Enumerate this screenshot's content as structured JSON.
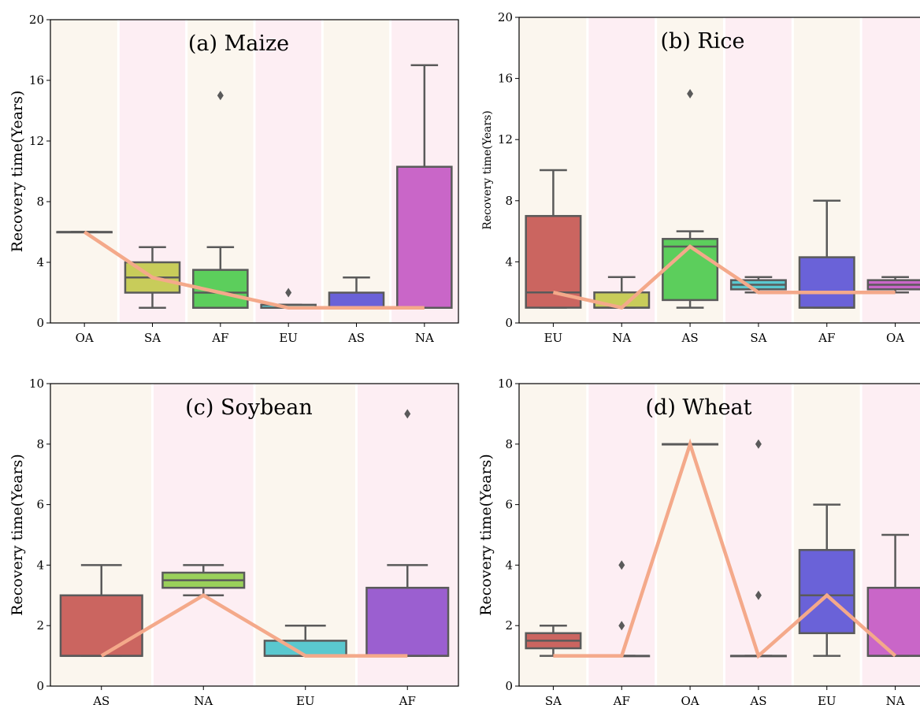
{
  "chart_data": [
    {
      "type": "box",
      "title": "(a) Maize",
      "ylabel": "Recovery time(Years)",
      "ylim": [
        0,
        20
      ],
      "yticks": [
        "0",
        "4",
        "8",
        "12",
        "16",
        "20"
      ],
      "categories": [
        "OA",
        "SA",
        "AF",
        "EU",
        "AS",
        "NA"
      ],
      "boxes": [
        {
          "q1": 6,
          "median": 6,
          "q3": 6,
          "whisker_low": 6,
          "whisker_high": 6,
          "outliers": [],
          "color": "#f0c05a"
        },
        {
          "q1": 2,
          "median": 3,
          "q3": 4,
          "whisker_low": 1,
          "whisker_high": 5,
          "outliers": [],
          "color": "#c8cc5a"
        },
        {
          "q1": 1,
          "median": 2,
          "q3": 3.5,
          "whisker_low": 1,
          "whisker_high": 5,
          "outliers": [
            15
          ],
          "color": "#5cce5c"
        },
        {
          "q1": 1,
          "median": 1,
          "q3": 1.2,
          "whisker_low": 1,
          "whisker_high": 1.2,
          "outliers": [
            2
          ],
          "color": "#5ac8cf"
        },
        {
          "q1": 1,
          "median": 1,
          "q3": 2,
          "whisker_low": 1,
          "whisker_high": 3,
          "outliers": [],
          "color": "#6a62d8"
        },
        {
          "q1": 1,
          "median": 1,
          "q3": 10.3,
          "whisker_low": 1,
          "whisker_high": 17,
          "outliers": [],
          "color": "#c966c8"
        }
      ],
      "line": [
        6,
        3,
        2,
        1,
        1,
        1
      ]
    },
    {
      "type": "box",
      "title": "(b)  Rice",
      "ylabel": "Recovery time(Years)",
      "ylim": [
        0,
        20
      ],
      "yticks": [
        "0",
        "4",
        "8",
        "12",
        "16",
        "20"
      ],
      "categories": [
        "EU",
        "NA",
        "AS",
        "SA",
        "AF",
        "OA"
      ],
      "boxes": [
        {
          "q1": 1,
          "median": 2,
          "q3": 7,
          "whisker_low": 1,
          "whisker_high": 10,
          "outliers": [],
          "color": "#cb6560"
        },
        {
          "q1": 1,
          "median": 1,
          "q3": 2,
          "whisker_low": 1,
          "whisker_high": 3,
          "outliers": [],
          "color": "#c8cc5a"
        },
        {
          "q1": 1.5,
          "median": 5,
          "q3": 5.5,
          "whisker_low": 1,
          "whisker_high": 6,
          "outliers": [
            15
          ],
          "color": "#5cce5c"
        },
        {
          "q1": 2.2,
          "median": 2.5,
          "q3": 2.8,
          "whisker_low": 2,
          "whisker_high": 3,
          "outliers": [],
          "color": "#5ac8cf"
        },
        {
          "q1": 1,
          "median": 1,
          "q3": 4.3,
          "whisker_low": 1,
          "whisker_high": 8,
          "outliers": [],
          "color": "#6a62d8"
        },
        {
          "q1": 2.2,
          "median": 2.5,
          "q3": 2.8,
          "whisker_low": 2,
          "whisker_high": 3,
          "outliers": [],
          "color": "#c966c8"
        }
      ],
      "line": [
        2,
        1,
        5,
        2,
        2,
        2
      ]
    },
    {
      "type": "box",
      "title": "(c)  Soybean",
      "ylabel": "Recovery time(Years)",
      "ylim": [
        0,
        10
      ],
      "yticks": [
        "0",
        "2",
        "4",
        "6",
        "8",
        "10"
      ],
      "categories": [
        "AS",
        "NA",
        "EU",
        "AF"
      ],
      "boxes": [
        {
          "q1": 1,
          "median": 1,
          "q3": 3,
          "whisker_low": 1,
          "whisker_high": 4,
          "outliers": [],
          "color": "#cb6560"
        },
        {
          "q1": 3.25,
          "median": 3.5,
          "q3": 3.75,
          "whisker_low": 3,
          "whisker_high": 4,
          "outliers": [],
          "color": "#9ad05a"
        },
        {
          "q1": 1,
          "median": 1,
          "q3": 1.5,
          "whisker_low": 1,
          "whisker_high": 2,
          "outliers": [],
          "color": "#5ac8cf"
        },
        {
          "q1": 1,
          "median": 1,
          "q3": 3.25,
          "whisker_low": 1,
          "whisker_high": 4,
          "outliers": [
            9
          ],
          "color": "#9b5fd0"
        }
      ],
      "line": [
        1,
        3,
        1,
        1
      ]
    },
    {
      "type": "box",
      "title": "(d) Wheat",
      "ylabel": "Recovery time(Years)",
      "ylim": [
        0,
        10
      ],
      "yticks": [
        "0",
        "2",
        "4",
        "6",
        "8",
        "10"
      ],
      "categories": [
        "SA",
        "AF",
        "OA",
        "AS",
        "EU",
        "NA"
      ],
      "boxes": [
        {
          "q1": 1.25,
          "median": 1.5,
          "q3": 1.75,
          "whisker_low": 1,
          "whisker_high": 2,
          "outliers": [],
          "color": "#cb6560"
        },
        {
          "q1": 1,
          "median": 1,
          "q3": 1,
          "whisker_low": 1,
          "whisker_high": 1,
          "outliers": [
            4,
            2
          ],
          "color": "#c8cc5a"
        },
        {
          "q1": 8,
          "median": 8,
          "q3": 8,
          "whisker_low": 8,
          "whisker_high": 8,
          "outliers": [],
          "color": "#5cce5c"
        },
        {
          "q1": 1,
          "median": 1,
          "q3": 1,
          "whisker_low": 1,
          "whisker_high": 1,
          "outliers": [
            8,
            3
          ],
          "color": "#5ac8cf"
        },
        {
          "q1": 1.75,
          "median": 3,
          "q3": 4.5,
          "whisker_low": 1,
          "whisker_high": 6,
          "outliers": [],
          "color": "#6a62d8"
        },
        {
          "q1": 1,
          "median": 1,
          "q3": 3.25,
          "whisker_low": 1,
          "whisker_high": 5,
          "outliers": [],
          "color": "#c966c8"
        }
      ],
      "line": [
        1,
        1,
        8,
        1,
        3,
        1
      ]
    }
  ],
  "colors": {
    "band_cream": "#fbf6ee",
    "band_pink": "#fdeef3",
    "band_separator": "#ffffff",
    "line": "#f4a98a",
    "box_edge": "#5a5a5a",
    "outlier": "#5a5a5a"
  }
}
